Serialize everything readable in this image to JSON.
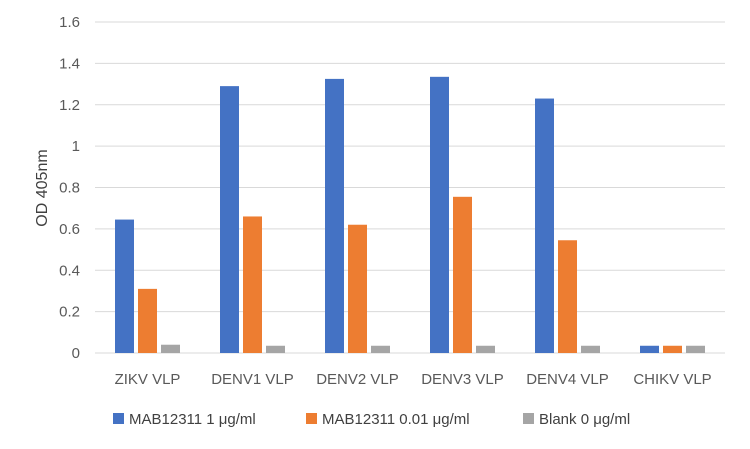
{
  "chart_data": {
    "type": "bar",
    "title": "",
    "xlabel": "",
    "ylabel": "OD 405nm",
    "ylim": [
      0,
      1.6
    ],
    "yticks": [
      "0",
      "0.2",
      "0.4",
      "0.6",
      "0.8",
      "1",
      "1.2",
      "1.4",
      "1.6"
    ],
    "grid": true,
    "legend_position": "bottom",
    "categories": [
      "ZIKV VLP",
      "DENV1 VLP",
      "DENV2 VLP",
      "DENV3 VLP",
      "DENV4 VLP",
      "CHIKV VLP"
    ],
    "series": [
      {
        "name": "MAB12311 1 μg/ml",
        "color": "#4472C4",
        "values": [
          0.645,
          1.29,
          1.325,
          1.335,
          1.23,
          0.035
        ]
      },
      {
        "name": "MAB12311 0.01 μg/ml",
        "color": "#ED7D31",
        "values": [
          0.31,
          0.66,
          0.62,
          0.755,
          0.545,
          0.035
        ]
      },
      {
        "name": "Blank 0 μg/ml",
        "color": "#A5A5A5",
        "values": [
          0.04,
          0.035,
          0.035,
          0.035,
          0.035,
          0.035
        ]
      }
    ],
    "gridline_color": "#D9D9D9"
  }
}
